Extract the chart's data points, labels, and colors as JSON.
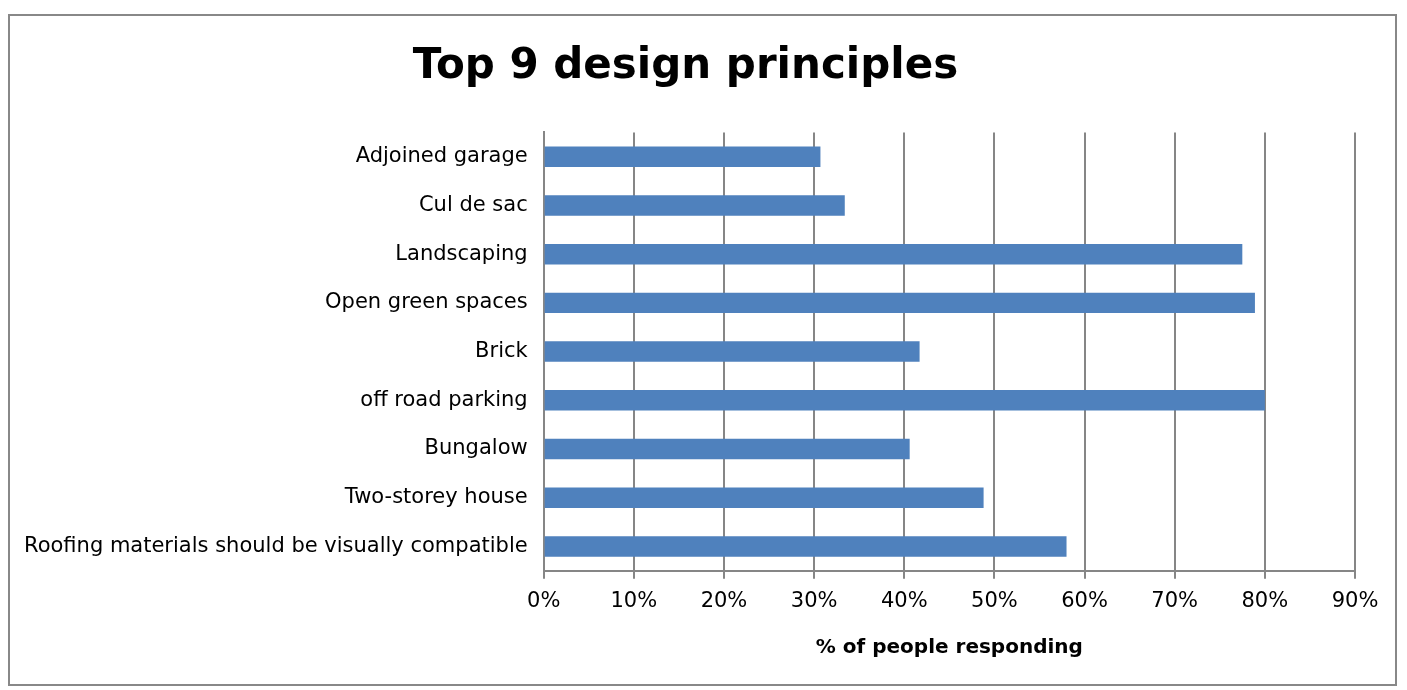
{
  "chart_data": {
    "type": "bar",
    "orientation": "horizontal",
    "title": "Top 9 design principles",
    "xlabel": "% of people responding",
    "categories": [
      "Adjoined garage",
      "Cul de sac",
      "Landscaping",
      "Open green spaces",
      "Brick",
      "off road parking",
      "Bungalow",
      "Two-storey house",
      "Roofing materials should be visually compatible"
    ],
    "series": [
      {
        "color": "#4f81bd",
        "values": [
          30.7,
          33.4,
          77.5,
          78.9,
          41.7,
          80,
          40.6,
          48.8,
          58
        ]
      }
    ],
    "xlim": [
      0,
      90
    ],
    "xticks": [
      {
        "value": 0,
        "label": "0%"
      },
      {
        "value": 10,
        "label": "10%"
      },
      {
        "value": 20,
        "label": "20%"
      },
      {
        "value": 30,
        "label": "30%"
      },
      {
        "value": 40,
        "label": "40%"
      },
      {
        "value": 50,
        "label": "50%"
      },
      {
        "value": 60,
        "label": "60%"
      },
      {
        "value": 70,
        "label": "70%"
      },
      {
        "value": 80,
        "label": "80%"
      },
      {
        "value": 90,
        "label": "90%"
      }
    ],
    "grid": "x",
    "legend": false
  }
}
